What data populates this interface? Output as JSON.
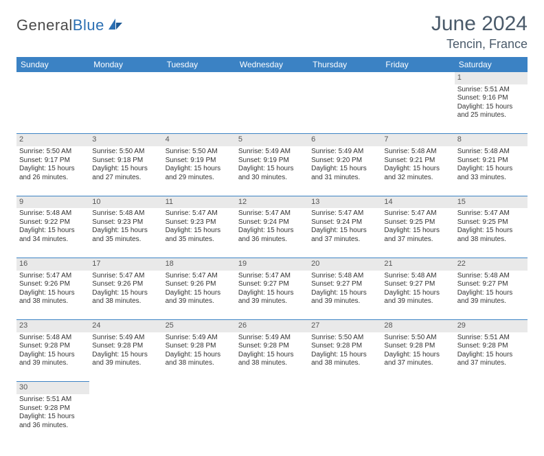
{
  "brand": {
    "part1": "General",
    "part2": "Blue"
  },
  "colors": {
    "header_bg": "#3b82c4",
    "header_text": "#ffffff",
    "daynum_bg": "#e9e9e9",
    "row_divider": "#3b82c4",
    "title_color": "#4a5a6a",
    "body_text": "#333333",
    "logo_gray": "#4a4a4a",
    "logo_blue": "#2b6fb3",
    "background": "#ffffff"
  },
  "typography": {
    "title_fontsize": 30,
    "location_fontsize": 18,
    "dayheader_fontsize": 12,
    "cell_fontsize": 10,
    "logo_fontsize": 22
  },
  "title": "June 2024",
  "location": "Tencin, France",
  "day_headers": [
    "Sunday",
    "Monday",
    "Tuesday",
    "Wednesday",
    "Thursday",
    "Friday",
    "Saturday"
  ],
  "weeks": [
    [
      null,
      null,
      null,
      null,
      null,
      null,
      {
        "n": "1",
        "sunrise": "Sunrise: 5:51 AM",
        "sunset": "Sunset: 9:16 PM",
        "d1": "Daylight: 15 hours",
        "d2": "and 25 minutes."
      }
    ],
    [
      {
        "n": "2",
        "sunrise": "Sunrise: 5:50 AM",
        "sunset": "Sunset: 9:17 PM",
        "d1": "Daylight: 15 hours",
        "d2": "and 26 minutes."
      },
      {
        "n": "3",
        "sunrise": "Sunrise: 5:50 AM",
        "sunset": "Sunset: 9:18 PM",
        "d1": "Daylight: 15 hours",
        "d2": "and 27 minutes."
      },
      {
        "n": "4",
        "sunrise": "Sunrise: 5:50 AM",
        "sunset": "Sunset: 9:19 PM",
        "d1": "Daylight: 15 hours",
        "d2": "and 29 minutes."
      },
      {
        "n": "5",
        "sunrise": "Sunrise: 5:49 AM",
        "sunset": "Sunset: 9:19 PM",
        "d1": "Daylight: 15 hours",
        "d2": "and 30 minutes."
      },
      {
        "n": "6",
        "sunrise": "Sunrise: 5:49 AM",
        "sunset": "Sunset: 9:20 PM",
        "d1": "Daylight: 15 hours",
        "d2": "and 31 minutes."
      },
      {
        "n": "7",
        "sunrise": "Sunrise: 5:48 AM",
        "sunset": "Sunset: 9:21 PM",
        "d1": "Daylight: 15 hours",
        "d2": "and 32 minutes."
      },
      {
        "n": "8",
        "sunrise": "Sunrise: 5:48 AM",
        "sunset": "Sunset: 9:21 PM",
        "d1": "Daylight: 15 hours",
        "d2": "and 33 minutes."
      }
    ],
    [
      {
        "n": "9",
        "sunrise": "Sunrise: 5:48 AM",
        "sunset": "Sunset: 9:22 PM",
        "d1": "Daylight: 15 hours",
        "d2": "and 34 minutes."
      },
      {
        "n": "10",
        "sunrise": "Sunrise: 5:48 AM",
        "sunset": "Sunset: 9:23 PM",
        "d1": "Daylight: 15 hours",
        "d2": "and 35 minutes."
      },
      {
        "n": "11",
        "sunrise": "Sunrise: 5:47 AM",
        "sunset": "Sunset: 9:23 PM",
        "d1": "Daylight: 15 hours",
        "d2": "and 35 minutes."
      },
      {
        "n": "12",
        "sunrise": "Sunrise: 5:47 AM",
        "sunset": "Sunset: 9:24 PM",
        "d1": "Daylight: 15 hours",
        "d2": "and 36 minutes."
      },
      {
        "n": "13",
        "sunrise": "Sunrise: 5:47 AM",
        "sunset": "Sunset: 9:24 PM",
        "d1": "Daylight: 15 hours",
        "d2": "and 37 minutes."
      },
      {
        "n": "14",
        "sunrise": "Sunrise: 5:47 AM",
        "sunset": "Sunset: 9:25 PM",
        "d1": "Daylight: 15 hours",
        "d2": "and 37 minutes."
      },
      {
        "n": "15",
        "sunrise": "Sunrise: 5:47 AM",
        "sunset": "Sunset: 9:25 PM",
        "d1": "Daylight: 15 hours",
        "d2": "and 38 minutes."
      }
    ],
    [
      {
        "n": "16",
        "sunrise": "Sunrise: 5:47 AM",
        "sunset": "Sunset: 9:26 PM",
        "d1": "Daylight: 15 hours",
        "d2": "and 38 minutes."
      },
      {
        "n": "17",
        "sunrise": "Sunrise: 5:47 AM",
        "sunset": "Sunset: 9:26 PM",
        "d1": "Daylight: 15 hours",
        "d2": "and 38 minutes."
      },
      {
        "n": "18",
        "sunrise": "Sunrise: 5:47 AM",
        "sunset": "Sunset: 9:26 PM",
        "d1": "Daylight: 15 hours",
        "d2": "and 39 minutes."
      },
      {
        "n": "19",
        "sunrise": "Sunrise: 5:47 AM",
        "sunset": "Sunset: 9:27 PM",
        "d1": "Daylight: 15 hours",
        "d2": "and 39 minutes."
      },
      {
        "n": "20",
        "sunrise": "Sunrise: 5:48 AM",
        "sunset": "Sunset: 9:27 PM",
        "d1": "Daylight: 15 hours",
        "d2": "and 39 minutes."
      },
      {
        "n": "21",
        "sunrise": "Sunrise: 5:48 AM",
        "sunset": "Sunset: 9:27 PM",
        "d1": "Daylight: 15 hours",
        "d2": "and 39 minutes."
      },
      {
        "n": "22",
        "sunrise": "Sunrise: 5:48 AM",
        "sunset": "Sunset: 9:27 PM",
        "d1": "Daylight: 15 hours",
        "d2": "and 39 minutes."
      }
    ],
    [
      {
        "n": "23",
        "sunrise": "Sunrise: 5:48 AM",
        "sunset": "Sunset: 9:28 PM",
        "d1": "Daylight: 15 hours",
        "d2": "and 39 minutes."
      },
      {
        "n": "24",
        "sunrise": "Sunrise: 5:49 AM",
        "sunset": "Sunset: 9:28 PM",
        "d1": "Daylight: 15 hours",
        "d2": "and 39 minutes."
      },
      {
        "n": "25",
        "sunrise": "Sunrise: 5:49 AM",
        "sunset": "Sunset: 9:28 PM",
        "d1": "Daylight: 15 hours",
        "d2": "and 38 minutes."
      },
      {
        "n": "26",
        "sunrise": "Sunrise: 5:49 AM",
        "sunset": "Sunset: 9:28 PM",
        "d1": "Daylight: 15 hours",
        "d2": "and 38 minutes."
      },
      {
        "n": "27",
        "sunrise": "Sunrise: 5:50 AM",
        "sunset": "Sunset: 9:28 PM",
        "d1": "Daylight: 15 hours",
        "d2": "and 38 minutes."
      },
      {
        "n": "28",
        "sunrise": "Sunrise: 5:50 AM",
        "sunset": "Sunset: 9:28 PM",
        "d1": "Daylight: 15 hours",
        "d2": "and 37 minutes."
      },
      {
        "n": "29",
        "sunrise": "Sunrise: 5:51 AM",
        "sunset": "Sunset: 9:28 PM",
        "d1": "Daylight: 15 hours",
        "d2": "and 37 minutes."
      }
    ],
    [
      {
        "n": "30",
        "sunrise": "Sunrise: 5:51 AM",
        "sunset": "Sunset: 9:28 PM",
        "d1": "Daylight: 15 hours",
        "d2": "and 36 minutes."
      },
      null,
      null,
      null,
      null,
      null,
      null
    ]
  ]
}
